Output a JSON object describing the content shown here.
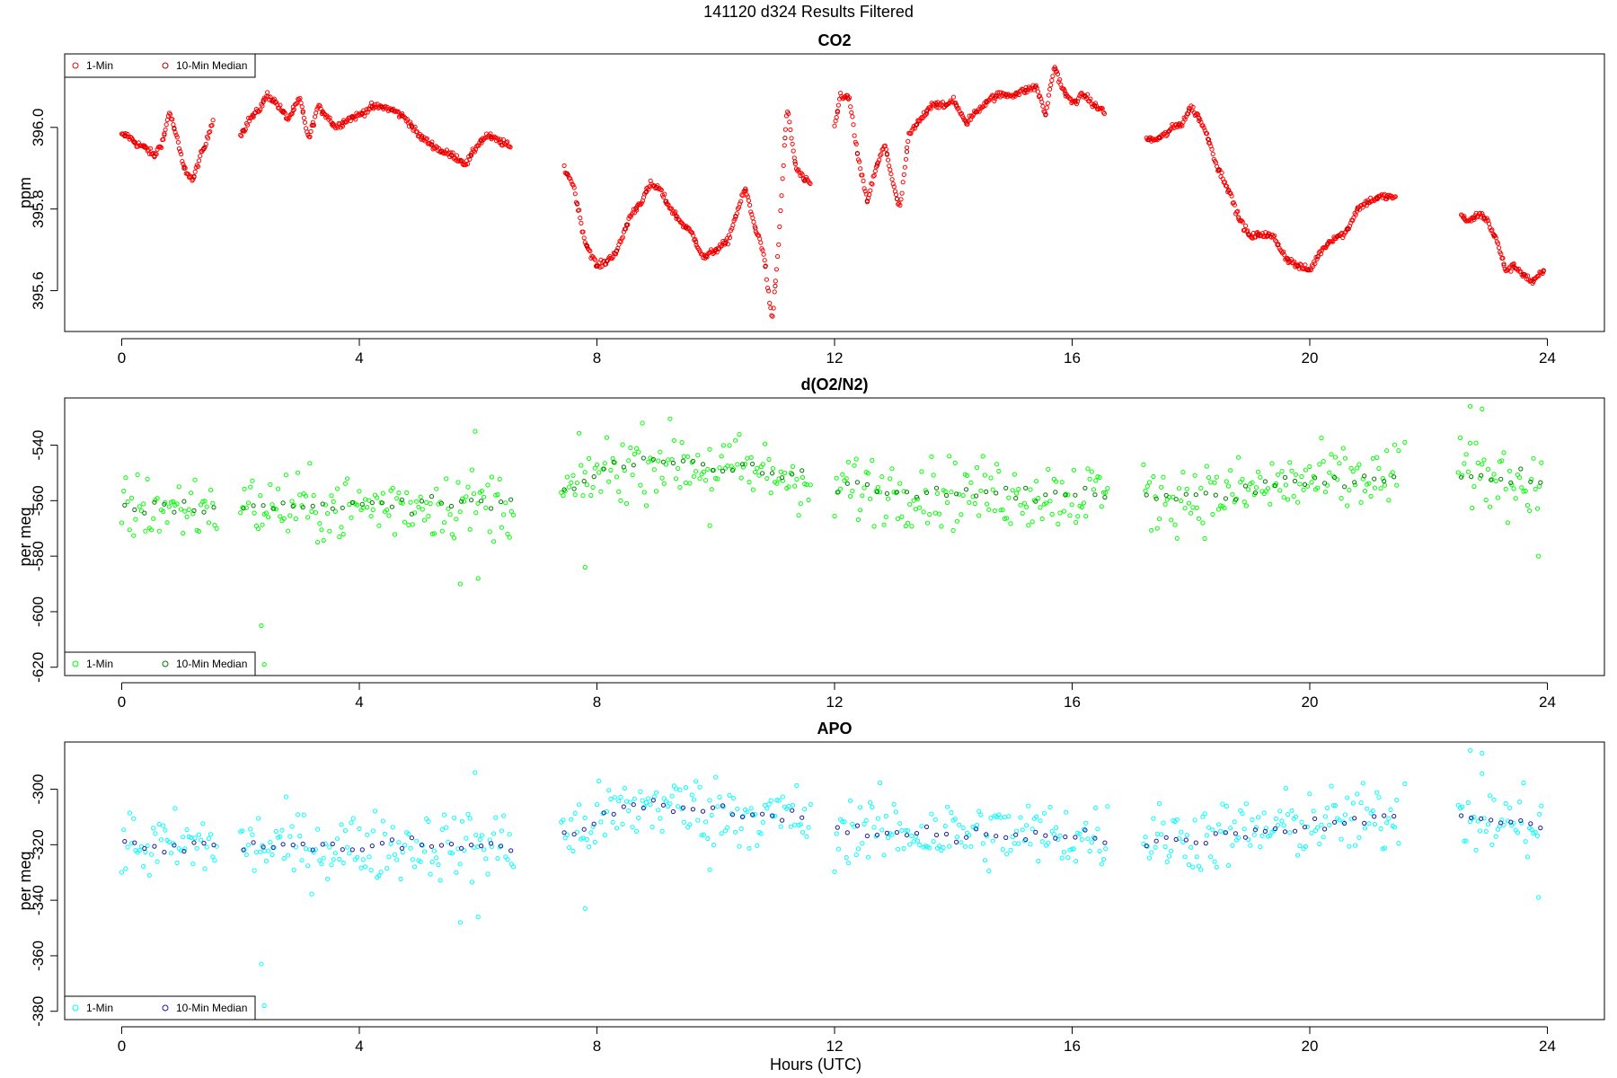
{
  "figure": {
    "supertitle": "141120   d324   Results Filtered",
    "xlabel": "Hours (UTC)"
  },
  "chart_data": [
    {
      "type": "scatter",
      "title": "CO2",
      "ylabel": "ppm",
      "xlim": [
        -0.96,
        24.96
      ],
      "ylim": [
        395.5,
        396.18
      ],
      "xticks": [
        0,
        4,
        8,
        12,
        16,
        20,
        24
      ],
      "yticks": [
        395.6,
        395.8,
        396.0
      ],
      "ytick_labels": [
        "395.6",
        "395.8",
        "396.0"
      ],
      "legend": {
        "position": "top-left",
        "entries": [
          "1-Min",
          "10-Min Median"
        ]
      },
      "colors": {
        "one_min": "#ff0000",
        "median": "#b00000"
      },
      "one_min_step": 0.0167,
      "median_step": 0.1667,
      "jitter": 0.006,
      "segments": [
        {
          "x": [
            0.0,
            0.1,
            0.25,
            0.4,
            0.55,
            0.7,
            0.8,
            0.9,
            1.05,
            1.2,
            1.3,
            1.42,
            1.55
          ],
          "y": [
            395.98,
            395.98,
            395.96,
            395.95,
            395.93,
            395.97,
            396.04,
            395.99,
            395.9,
            395.87,
            395.92,
            395.96,
            396.03
          ]
        },
        {
          "x": [
            2.0,
            2.15,
            2.3,
            2.45,
            2.6,
            2.8,
            3.0,
            3.15,
            3.3,
            3.45,
            3.6,
            3.8,
            4.0,
            4.2,
            4.4,
            4.6,
            4.8,
            5.0,
            5.2,
            5.4,
            5.6,
            5.8,
            6.0,
            6.15,
            6.3,
            6.45,
            6.55
          ],
          "y": [
            395.98,
            396.02,
            396.04,
            396.08,
            396.06,
            396.02,
            396.07,
            395.97,
            396.05,
            396.03,
            396.0,
            396.02,
            396.03,
            396.05,
            396.05,
            396.04,
            396.02,
            395.98,
            395.96,
            395.94,
            395.93,
            395.91,
            395.96,
            395.98,
            395.97,
            395.96,
            395.95
          ]
        },
        {
          "x": [
            7.45,
            7.6,
            7.8,
            8.0,
            8.15,
            8.35,
            8.55,
            8.75,
            8.9,
            9.05,
            9.2,
            9.4,
            9.6,
            9.8,
            10.0,
            10.2,
            10.35,
            10.5,
            10.65,
            10.8,
            10.95,
            11.05,
            11.2,
            11.35,
            11.5,
            11.6
          ],
          "y": [
            395.9,
            395.86,
            395.72,
            395.66,
            395.67,
            395.7,
            395.78,
            395.82,
            395.86,
            395.85,
            395.81,
            395.77,
            395.74,
            395.68,
            395.7,
            395.72,
            395.79,
            395.85,
            395.76,
            395.7,
            395.52,
            395.7,
            396.05,
            395.9,
            395.87,
            395.86
          ]
        },
        {
          "x": [
            12.0,
            12.1,
            12.25,
            12.4,
            12.55,
            12.7,
            12.85,
            13.0,
            13.1,
            13.25,
            13.45,
            13.65,
            13.85,
            14.0,
            14.2,
            14.4,
            14.6,
            14.8,
            15.0,
            15.2,
            15.4,
            15.55,
            15.7,
            15.85,
            16.0,
            16.2,
            16.4,
            16.55
          ],
          "y": [
            396.0,
            396.08,
            396.07,
            395.92,
            395.82,
            395.9,
            395.96,
            395.85,
            395.8,
            395.98,
            396.02,
            396.06,
            396.05,
            396.07,
            396.01,
            396.04,
            396.07,
            396.08,
            396.08,
            396.09,
            396.1,
            396.03,
            396.15,
            396.09,
            396.06,
            396.08,
            396.05,
            396.04
          ]
        },
        {
          "x": [
            17.25,
            17.4,
            17.55,
            17.7,
            17.85,
            18.0,
            18.15,
            18.3,
            18.45,
            18.6,
            18.8,
            19.0,
            19.2,
            19.4,
            19.6,
            19.8,
            20.0,
            20.2,
            20.4,
            20.6,
            20.8,
            21.0,
            21.2,
            21.45
          ],
          "y": [
            395.97,
            395.97,
            395.98,
            396.0,
            396.01,
            396.05,
            396.02,
            395.97,
            395.9,
            395.86,
            395.78,
            395.73,
            395.74,
            395.73,
            395.68,
            395.66,
            395.65,
            395.7,
            395.73,
            395.74,
            395.8,
            395.82,
            395.83,
            395.83
          ]
        },
        {
          "x": [
            22.55,
            22.7,
            22.85,
            23.0,
            23.15,
            23.3,
            23.45,
            23.6,
            23.75,
            23.95
          ],
          "y": [
            395.78,
            395.77,
            395.79,
            395.77,
            395.72,
            395.65,
            395.66,
            395.64,
            395.62,
            395.65
          ]
        }
      ]
    },
    {
      "type": "scatter",
      "title": "d(O2/N2)",
      "ylabel": "per meg",
      "xlim": [
        -0.96,
        24.96
      ],
      "ylim": [
        -623,
        -523
      ],
      "xticks": [
        0,
        4,
        8,
        12,
        16,
        20,
        24
      ],
      "yticks": [
        -620,
        -600,
        -580,
        -560,
        -540
      ],
      "ytick_labels": [
        "-620",
        "-600",
        "-580",
        "-560",
        "-540"
      ],
      "legend": {
        "position": "bottom-left",
        "entries": [
          "1-Min",
          "10-Min Median"
        ]
      },
      "colors": {
        "one_min": "#00ff00",
        "median": "#007a00"
      },
      "one_min_step": 0.0333,
      "median_step": 0.1667,
      "scatter_spread": 9,
      "segments": [
        {
          "x": [
            0.0,
            0.7,
            1.6
          ],
          "y": [
            -562,
            -563,
            -562
          ]
        },
        {
          "x": [
            2.0,
            3.5,
            5.0,
            6.6
          ],
          "y": [
            -562,
            -563,
            -561,
            -561
          ]
        },
        {
          "x": [
            7.4,
            8.0,
            9.0,
            10.0,
            11.6
          ],
          "y": [
            -558,
            -550,
            -545,
            -548,
            -552
          ]
        },
        {
          "x": [
            12.0,
            14.0,
            16.6
          ],
          "y": [
            -555,
            -557,
            -558
          ]
        },
        {
          "x": [
            17.2,
            18.5,
            20.0,
            21.5
          ],
          "y": [
            -559,
            -558,
            -553,
            -552
          ]
        },
        {
          "x": [
            22.5,
            23.9
          ],
          "y": [
            -551,
            -553
          ]
        }
      ],
      "outliers": [
        {
          "x": 2.35,
          "y": -605
        },
        {
          "x": 2.4,
          "y": -619
        },
        {
          "x": 5.7,
          "y": -590
        },
        {
          "x": 6.0,
          "y": -588
        },
        {
          "x": 5.95,
          "y": -535
        },
        {
          "x": 7.8,
          "y": -584
        },
        {
          "x": 9.9,
          "y": -569
        },
        {
          "x": 22.7,
          "y": -526
        },
        {
          "x": 22.9,
          "y": -527
        },
        {
          "x": 23.85,
          "y": -580
        },
        {
          "x": 21.6,
          "y": -539
        }
      ]
    },
    {
      "type": "scatter",
      "title": "APO",
      "ylabel": "per meg",
      "xlim": [
        -0.96,
        24.96
      ],
      "ylim": [
        -383,
        -283
      ],
      "xticks": [
        0,
        4,
        8,
        12,
        16,
        20,
        24
      ],
      "yticks": [
        -380,
        -360,
        -340,
        -320,
        -300
      ],
      "ytick_labels": [
        "-380",
        "-360",
        "-340",
        "-320",
        "-300"
      ],
      "legend": {
        "position": "bottom-left",
        "entries": [
          "1-Min",
          "10-Min Median"
        ]
      },
      "colors": {
        "one_min": "#00ffff",
        "median": "#1a1a9e"
      },
      "one_min_step": 0.0333,
      "median_step": 0.1667,
      "scatter_spread": 9,
      "segments": [
        {
          "x": [
            0.0,
            0.7,
            1.6
          ],
          "y": [
            -320,
            -321,
            -320
          ]
        },
        {
          "x": [
            2.0,
            3.5,
            5.0,
            6.6
          ],
          "y": [
            -320,
            -321,
            -320,
            -320
          ]
        },
        {
          "x": [
            7.4,
            8.0,
            9.0,
            10.0,
            11.6
          ],
          "y": [
            -318,
            -311,
            -305,
            -308,
            -311
          ]
        },
        {
          "x": [
            12.0,
            14.0,
            16.6
          ],
          "y": [
            -314,
            -316,
            -317
          ]
        },
        {
          "x": [
            17.2,
            18.5,
            20.0,
            21.5
          ],
          "y": [
            -318,
            -317,
            -312,
            -311
          ]
        },
        {
          "x": [
            22.5,
            23.9
          ],
          "y": [
            -310,
            -313
          ]
        }
      ],
      "outliers": [
        {
          "x": 2.35,
          "y": -363
        },
        {
          "x": 2.4,
          "y": -378
        },
        {
          "x": 5.7,
          "y": -348
        },
        {
          "x": 6.0,
          "y": -346
        },
        {
          "x": 5.95,
          "y": -294
        },
        {
          "x": 7.8,
          "y": -343
        },
        {
          "x": 9.9,
          "y": -329
        },
        {
          "x": 22.7,
          "y": -286
        },
        {
          "x": 22.9,
          "y": -287
        },
        {
          "x": 23.85,
          "y": -339
        },
        {
          "x": 21.6,
          "y": -298
        }
      ]
    }
  ]
}
